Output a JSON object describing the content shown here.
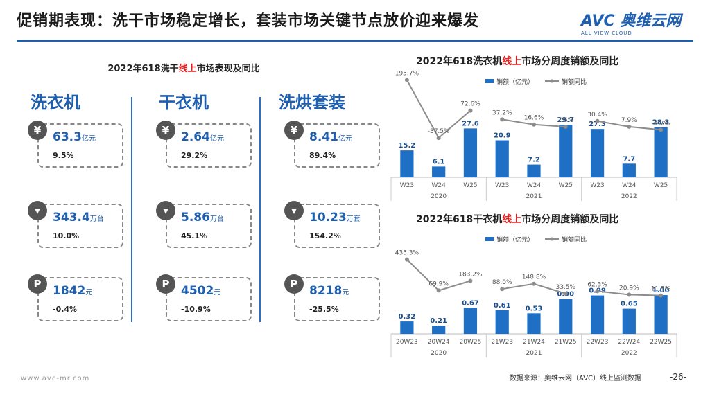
{
  "header": {
    "title": "促销期表现：洗干市场稳定增长，套装市场关键节点放价迎来爆发",
    "logo_main": "AVC 奥维云网",
    "logo_sub": "ALL VIEW CLOUD"
  },
  "left": {
    "title_pre": "2022年618洗干",
    "title_red": "线上",
    "title_post": "市场表现及同比",
    "categories": [
      {
        "name": "洗衣机",
        "sales": {
          "value": "63.3",
          "unit": "亿元",
          "yoy": "9.5%"
        },
        "volume": {
          "value": "343.4",
          "unit": "万台",
          "yoy": "10.0%"
        },
        "price": {
          "value": "1842",
          "unit": "元",
          "yoy": "-0.4%"
        }
      },
      {
        "name": "干衣机",
        "sales": {
          "value": "2.64",
          "unit": "亿元",
          "yoy": "29.2%"
        },
        "volume": {
          "value": "5.86",
          "unit": "万台",
          "yoy": "45.1%"
        },
        "price": {
          "value": "4502",
          "unit": "元",
          "yoy": "-10.9%"
        }
      },
      {
        "name": "洗烘套装",
        "sales": {
          "value": "8.41",
          "unit": "亿元",
          "yoy": "89.4%"
        },
        "volume": {
          "value": "10.23",
          "unit": "万套",
          "yoy": "154.2%"
        },
        "price": {
          "value": "8218",
          "unit": "元",
          "yoy": "-25.5%"
        }
      }
    ],
    "icons": {
      "sales": "yen-icon",
      "volume": "bag-icon",
      "price": "price-tag-icon"
    }
  },
  "chart_data": [
    {
      "type": "bar",
      "title_pre": "2022年618洗衣机",
      "title_red": "线上",
      "title_post": "市场分周度销额及同比",
      "legend": [
        "销额（亿元）",
        "销额同比"
      ],
      "categories": [
        "W23",
        "W24",
        "W25",
        "W23",
        "W24",
        "W25",
        "W23",
        "W24",
        "W25"
      ],
      "groups": [
        "2020",
        "2021",
        "2022"
      ],
      "series": [
        {
          "name": "销额（亿元）",
          "values": [
            15.2,
            6.1,
            27.6,
            20.9,
            7.2,
            29.7,
            27.3,
            7.7,
            28.3
          ],
          "labels": [
            "15.2",
            "6.1",
            "27.6",
            "20.9",
            "7.2",
            "29.7",
            "27.3",
            "7.7",
            "28.3"
          ]
        },
        {
          "name": "销额同比",
          "values": [
            195.7,
            -37.5,
            72.6,
            37.2,
            16.6,
            7.6,
            30.4,
            7.9,
            -4.7
          ],
          "labels": [
            "195.7%",
            "-37.5%",
            "72.6%",
            "37.2%",
            "16.6%",
            "7.6%",
            "30.4%",
            "7.9%",
            "-4.7%"
          ]
        }
      ],
      "colors": {
        "bar": "#1f6fc5",
        "line": "#8c8c8c"
      }
    },
    {
      "type": "bar",
      "title_pre": "2022年618干衣机",
      "title_red": "线上",
      "title_post": "市场分周度销额及同比",
      "legend": [
        "销额（亿元）",
        "销额同比"
      ],
      "categories": [
        "20W23",
        "20W24",
        "20W25",
        "21W23",
        "21W24",
        "21W25",
        "22W23",
        "22W24",
        "22W25"
      ],
      "groups": [
        "2020",
        "2021",
        "2022"
      ],
      "series": [
        {
          "name": "销额（亿元）",
          "values": [
            0.32,
            0.21,
            0.67,
            0.61,
            0.53,
            0.9,
            0.99,
            0.65,
            1.0
          ],
          "labels": [
            "0.32",
            "0.21",
            "0.67",
            "0.61",
            "0.53",
            "0.90",
            "0.99",
            "0.65",
            "1.00"
          ]
        },
        {
          "name": "销额同比",
          "values": [
            435.3,
            69.9,
            183.2,
            88.0,
            148.8,
            33.5,
            62.3,
            20.9,
            11.7
          ],
          "labels": [
            "435.3%",
            "69.9%",
            "183.2%",
            "88.0%",
            "148.8%",
            "33.5%",
            "62.3%",
            "20.9%",
            "11.7%"
          ]
        }
      ],
      "colors": {
        "bar": "#1f6fc5",
        "line": "#8c8c8c"
      }
    }
  ],
  "footer": {
    "source": "数据来源：奥维云网（AVC）线上监测数据",
    "page": "-26-",
    "site": "www.avc-mr.com"
  }
}
